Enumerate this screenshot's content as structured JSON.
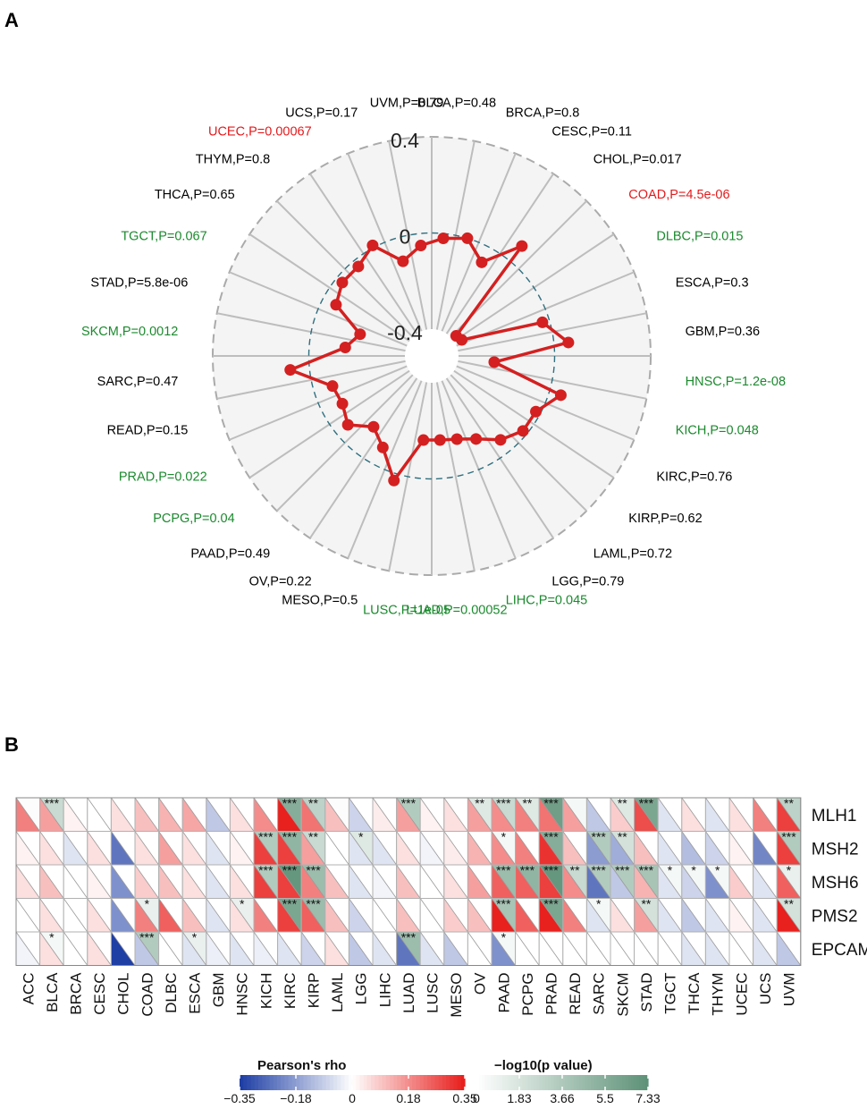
{
  "panel_a": {
    "label": "A",
    "chart_data": {
      "type": "radar",
      "rlim": [
        -0.4,
        0.4
      ],
      "tick_labels": [
        "0.4",
        "0",
        "-0.4"
      ],
      "points": [
        {
          "cancer": "BLCA",
          "p_label": "BLCA,P=0.48",
          "value": -0.02,
          "color": "#000000"
        },
        {
          "cancer": "BRCA",
          "p_label": "BRCA,P=0.8",
          "value": 0.0,
          "color": "#000000"
        },
        {
          "cancer": "CESC",
          "p_label": "CESC,P=0.11",
          "value": -0.07,
          "color": "#000000"
        },
        {
          "cancer": "CHOL",
          "p_label": "CHOL,P=0.017",
          "value": 0.08,
          "color": "#000000"
        },
        {
          "cancer": "COAD",
          "p_label": "COAD,P=4.5e-06",
          "value": -0.38,
          "color": "#e31a1c"
        },
        {
          "cancer": "DLBC",
          "p_label": "DLBC,P=0.015",
          "value": -0.37,
          "color": "#1b8a2e"
        },
        {
          "cancer": "ESCA",
          "p_label": "ESCA,P=0.3",
          "value": -0.03,
          "color": "#000000"
        },
        {
          "cancer": "GBM",
          "p_label": "GBM,P=0.36",
          "value": 0.06,
          "color": "#000000"
        },
        {
          "cancer": "HNSC",
          "p_label": "HNSC,P=1.2e-08",
          "value": -0.25,
          "color": "#1b8a2e"
        },
        {
          "cancer": "KICH",
          "p_label": "KICH,P=0.048",
          "value": 0.05,
          "color": "#1b8a2e"
        },
        {
          "cancer": "KIRC",
          "p_label": "KIRC,P=0.76",
          "value": -0.02,
          "color": "#000000"
        },
        {
          "cancer": "KIRP",
          "p_label": "KIRP,P=0.62",
          "value": -0.02,
          "color": "#000000"
        },
        {
          "cancer": "LAML",
          "p_label": "LAML,P=0.72",
          "value": -0.06,
          "color": "#000000"
        },
        {
          "cancer": "LGG",
          "p_label": "LGG,P=0.79",
          "value": -0.12,
          "color": "#000000"
        },
        {
          "cancer": "LIHC",
          "p_label": "LIHC,P=0.045",
          "value": -0.15,
          "color": "#1b8a2e"
        },
        {
          "cancer": "LUAD",
          "p_label": "LUAD,P=0.00052",
          "value": -0.16,
          "color": "#1b8a2e"
        },
        {
          "cancer": "LUSC",
          "p_label": "LUSC,P=1e-05",
          "value": -0.16,
          "color": "#1b8a2e"
        },
        {
          "cancer": "MESO",
          "p_label": "MESO,P=0.5",
          "value": 0.03,
          "color": "#000000"
        },
        {
          "cancer": "OV",
          "p_label": "OV,P=0.22",
          "value": -0.08,
          "color": "#000000"
        },
        {
          "cancer": "PAAD",
          "p_label": "PAAD,P=0.49",
          "value": -0.13,
          "color": "#000000"
        },
        {
          "cancer": "PCPG",
          "p_label": "PCPG,P=0.04",
          "value": -0.06,
          "color": "#1b8a2e"
        },
        {
          "cancer": "PRAD",
          "p_label": "PRAD,P=0.022",
          "value": -0.09,
          "color": "#1b8a2e"
        },
        {
          "cancer": "READ",
          "p_label": "READ,P=0.15",
          "value": -0.08,
          "color": "#000000"
        },
        {
          "cancer": "SARC",
          "p_label": "SARC,P=0.47",
          "value": 0.08,
          "color": "#000000"
        },
        {
          "cancer": "SKCM",
          "p_label": "SKCM,P=0.0012",
          "value": -0.15,
          "color": "#1b8a2e"
        },
        {
          "cancer": "STAD",
          "p_label": "STAD,P=5.8e-06",
          "value": -0.2,
          "color": "#000000"
        },
        {
          "cancer": "TGCT",
          "p_label": "TGCT,P=0.067",
          "value": -0.06,
          "color": "#1b8a2e"
        },
        {
          "cancer": "THCA",
          "p_label": "THCA,P=0.65",
          "value": -0.03,
          "color": "#000000"
        },
        {
          "cancer": "THYM",
          "p_label": "THYM,P=0.8",
          "value": -0.03,
          "color": "#000000"
        },
        {
          "cancer": "UCEC",
          "p_label": "UCEC,P=0.00067",
          "value": 0.01,
          "color": "#e31a1c"
        },
        {
          "cancer": "UCS",
          "p_label": "UCS,P=0.17",
          "value": -0.1,
          "color": "#000000"
        },
        {
          "cancer": "UVM",
          "p_label": "UVM,P=0.79",
          "value": -0.05,
          "color": "#000000"
        }
      ]
    }
  },
  "panel_b": {
    "label": "B",
    "chart_data": {
      "type": "heatmap",
      "genes": [
        "MLH1",
        "MSH2",
        "MSH6",
        "PMS2",
        "EPCAM"
      ],
      "cancers": [
        "ACC",
        "BLCA",
        "BRCA",
        "CESC",
        "CHOL",
        "COAD",
        "DLBC",
        "ESCA",
        "GBM",
        "HNSC",
        "KICH",
        "KIRC",
        "KIRP",
        "LAML",
        "LGG",
        "LIHC",
        "LUAD",
        "LUSC",
        "MESO",
        "OV",
        "PAAD",
        "PCPG",
        "PRAD",
        "READ",
        "SARC",
        "SKCM",
        "STAD",
        "TGCT",
        "THCA",
        "THYM",
        "UCEC",
        "UCS",
        "UVM"
      ],
      "rho": [
        [
          0.2,
          0.15,
          0.02,
          0.0,
          0.05,
          0.1,
          0.12,
          0.14,
          -0.1,
          0.05,
          0.18,
          0.35,
          0.22,
          0.1,
          -0.08,
          0.03,
          0.15,
          0.02,
          0.05,
          0.15,
          0.18,
          0.2,
          0.22,
          0.15,
          -0.1,
          0.08,
          0.28,
          -0.05,
          0.05,
          -0.05,
          0.05,
          0.2,
          0.3
        ],
        [
          0.02,
          0.05,
          -0.05,
          0.05,
          -0.25,
          0.05,
          0.15,
          0.05,
          -0.05,
          0.02,
          0.3,
          0.3,
          0.15,
          0.0,
          -0.05,
          -0.05,
          0.05,
          -0.02,
          0.03,
          0.12,
          0.18,
          0.2,
          0.32,
          0.1,
          -0.18,
          -0.15,
          0.1,
          -0.05,
          -0.12,
          -0.08,
          0.02,
          -0.22,
          0.3
        ],
        [
          0.05,
          0.1,
          0.0,
          0.02,
          -0.2,
          0.08,
          0.1,
          0.05,
          -0.05,
          0.05,
          0.3,
          0.3,
          0.2,
          0.1,
          -0.05,
          -0.02,
          0.1,
          0.0,
          0.05,
          0.15,
          0.25,
          0.25,
          0.3,
          0.18,
          -0.25,
          -0.1,
          0.12,
          -0.05,
          -0.08,
          -0.2,
          0.08,
          -0.05,
          0.25
        ],
        [
          0.0,
          0.05,
          0.0,
          0.05,
          -0.2,
          0.2,
          0.25,
          0.1,
          -0.05,
          0.05,
          0.2,
          0.3,
          0.25,
          0.1,
          -0.08,
          0.0,
          0.1,
          0.0,
          0.08,
          0.1,
          0.35,
          0.25,
          0.35,
          0.2,
          -0.05,
          0.05,
          0.15,
          -0.05,
          -0.1,
          -0.05,
          0.02,
          -0.05,
          0.35
        ],
        [
          -0.02,
          0.05,
          0.0,
          0.05,
          -0.35,
          -0.1,
          0.0,
          -0.05,
          -0.03,
          -0.05,
          -0.03,
          -0.05,
          -0.08,
          0.05,
          -0.1,
          -0.05,
          -0.25,
          -0.05,
          -0.1,
          0.0,
          -0.2,
          0.0,
          0.0,
          0.0,
          0.0,
          0.0,
          0.0,
          0.0,
          -0.05,
          -0.05,
          0.0,
          -0.05,
          -0.1
        ]
      ],
      "neglog10p": [
        [
          0.2,
          2.5,
          0.0,
          0.0,
          0.0,
          0.0,
          0.0,
          0.0,
          0.0,
          0.0,
          0.0,
          5.5,
          3.0,
          0.2,
          0.0,
          0.0,
          3.5,
          0.0,
          0.0,
          1.5,
          2.5,
          1.5,
          6.5,
          0.5,
          0.0,
          1.5,
          6.0,
          0.0,
          0.0,
          0.0,
          0.0,
          0.0,
          3.0
        ],
        [
          0.0,
          0.0,
          0.0,
          0.0,
          0.0,
          0.0,
          0.0,
          0.0,
          0.0,
          0.0,
          3.5,
          5.0,
          2.5,
          0.0,
          1.5,
          0.0,
          0.0,
          0.0,
          0.0,
          0.0,
          0.5,
          0.0,
          5.5,
          0.0,
          3.5,
          2.0,
          0.0,
          0.0,
          0.0,
          0.0,
          0.0,
          0.0,
          3.5
        ],
        [
          0.0,
          0.0,
          0.0,
          0.0,
          0.0,
          0.0,
          0.0,
          0.0,
          0.0,
          0.0,
          3.5,
          7.0,
          4.5,
          0.0,
          0.0,
          0.0,
          0.0,
          0.0,
          0.0,
          0.0,
          4.5,
          5.0,
          7.0,
          2.5,
          3.5,
          3.5,
          4.0,
          0.5,
          0.5,
          0.5,
          0.0,
          0.0,
          1.0
        ],
        [
          0.0,
          0.0,
          0.0,
          0.0,
          0.0,
          1.0,
          0.0,
          0.0,
          0.0,
          1.0,
          0.0,
          6.0,
          4.5,
          0.0,
          0.0,
          0.0,
          0.0,
          0.0,
          0.0,
          0.0,
          4.0,
          0.0,
          6.0,
          0.0,
          0.5,
          0.0,
          2.0,
          0.0,
          0.0,
          0.0,
          0.0,
          0.0,
          2.0
        ],
        [
          0.0,
          0.5,
          0.0,
          0.0,
          0.0,
          3.5,
          0.0,
          1.0,
          0.0,
          0.0,
          0.0,
          0.0,
          0.0,
          0.0,
          0.0,
          0.0,
          4.5,
          0.0,
          0.0,
          0.0,
          0.5,
          0.0,
          0.0,
          0.0,
          0.0,
          0.0,
          0.0,
          0.0,
          0.0,
          0.0,
          0.0,
          0.0,
          0.0
        ]
      ],
      "stars": [
        [
          "",
          "***",
          "",
          "",
          "",
          "",
          "",
          "",
          "",
          "",
          "",
          "***",
          "**",
          "",
          "",
          "",
          "***",
          "",
          "",
          "**",
          "***",
          "**",
          "***",
          "",
          "",
          "**",
          "***",
          "",
          "",
          "",
          "",
          "",
          "**"
        ],
        [
          "",
          "",
          "",
          "",
          "",
          "",
          "",
          "",
          "",
          "",
          "***",
          "***",
          "**",
          "",
          "*",
          "",
          "",
          "",
          "",
          "",
          "*",
          "",
          "***",
          "",
          "***",
          "**",
          "",
          "",
          "",
          "",
          "",
          "",
          "***"
        ],
        [
          "",
          "",
          "",
          "",
          "",
          "",
          "",
          "",
          "",
          "",
          "***",
          "***",
          "***",
          "",
          "",
          "",
          "",
          "",
          "",
          "",
          "***",
          "***",
          "***",
          "**",
          "***",
          "***",
          "***",
          "*",
          "*",
          "*",
          "",
          "",
          "*"
        ],
        [
          "",
          "",
          "",
          "",
          "",
          "*",
          "",
          "",
          "",
          "*",
          "",
          "***",
          "***",
          "",
          "",
          "",
          "",
          "",
          "",
          "",
          "***",
          "",
          "***",
          "",
          "*",
          "",
          "**",
          "",
          "",
          "",
          "",
          "",
          "**"
        ],
        [
          "",
          "*",
          "",
          "",
          "",
          "***",
          "",
          "*",
          "",
          "",
          "",
          "",
          "",
          "",
          "",
          "",
          "***",
          "",
          "",
          "",
          "*",
          "",
          "",
          "",
          "",
          "",
          "",
          "",
          "",
          "",
          "",
          "",
          ""
        ]
      ],
      "legend_rho": {
        "title": "Pearson's rho",
        "ticks": [
          "−0.35",
          "−0.18",
          "0",
          "0.18",
          "0.35"
        ],
        "low": "#1f3fa5",
        "mid": "#ffffff",
        "high": "#e8201e"
      },
      "legend_p": {
        "title": "−log10(p value)",
        "ticks": [
          "0",
          "1.83",
          "3.66",
          "5.5",
          "7.33"
        ],
        "low": "#ffffff",
        "high": "#5e9278"
      }
    }
  }
}
